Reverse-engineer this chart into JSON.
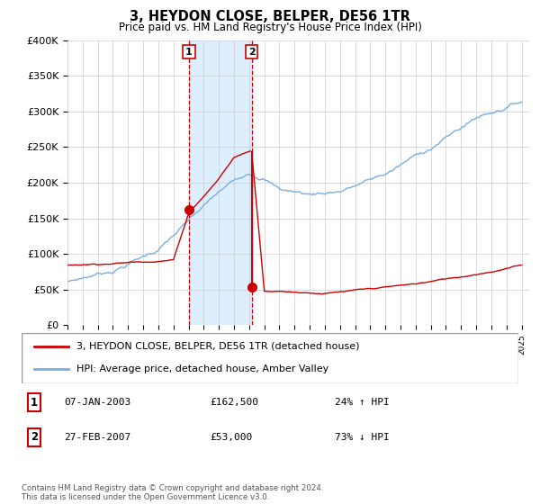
{
  "title": "3, HEYDON CLOSE, BELPER, DE56 1TR",
  "subtitle": "Price paid vs. HM Land Registry's House Price Index (HPI)",
  "ylabel_ticks": [
    "£0",
    "£50K",
    "£100K",
    "£150K",
    "£200K",
    "£250K",
    "£300K",
    "£350K",
    "£400K"
  ],
  "ytick_values": [
    0,
    50000,
    100000,
    150000,
    200000,
    250000,
    300000,
    350000,
    400000
  ],
  "ylim": [
    0,
    400000
  ],
  "xlim_start": 1995.0,
  "xlim_end": 2025.5,
  "transaction1": {
    "date_num": 2003.03,
    "price": 162500,
    "label": "1",
    "date_str": "07-JAN-2003",
    "hpi_str": "24% ↑ HPI"
  },
  "transaction2": {
    "date_num": 2007.16,
    "price": 53000,
    "label": "2",
    "date_str": "27-FEB-2007",
    "hpi_str": "73% ↓ HPI"
  },
  "legend_line1": "3, HEYDON CLOSE, BELPER, DE56 1TR (detached house)",
  "legend_line2": "HPI: Average price, detached house, Amber Valley",
  "footnote": "Contains HM Land Registry data © Crown copyright and database right 2024.\nThis data is licensed under the Open Government Licence v3.0.",
  "red_color": "#cc0000",
  "blue_color": "#7aafe0",
  "shade_color": "#ddeeff",
  "background_color": "#ffffff",
  "grid_color": "#cccccc"
}
